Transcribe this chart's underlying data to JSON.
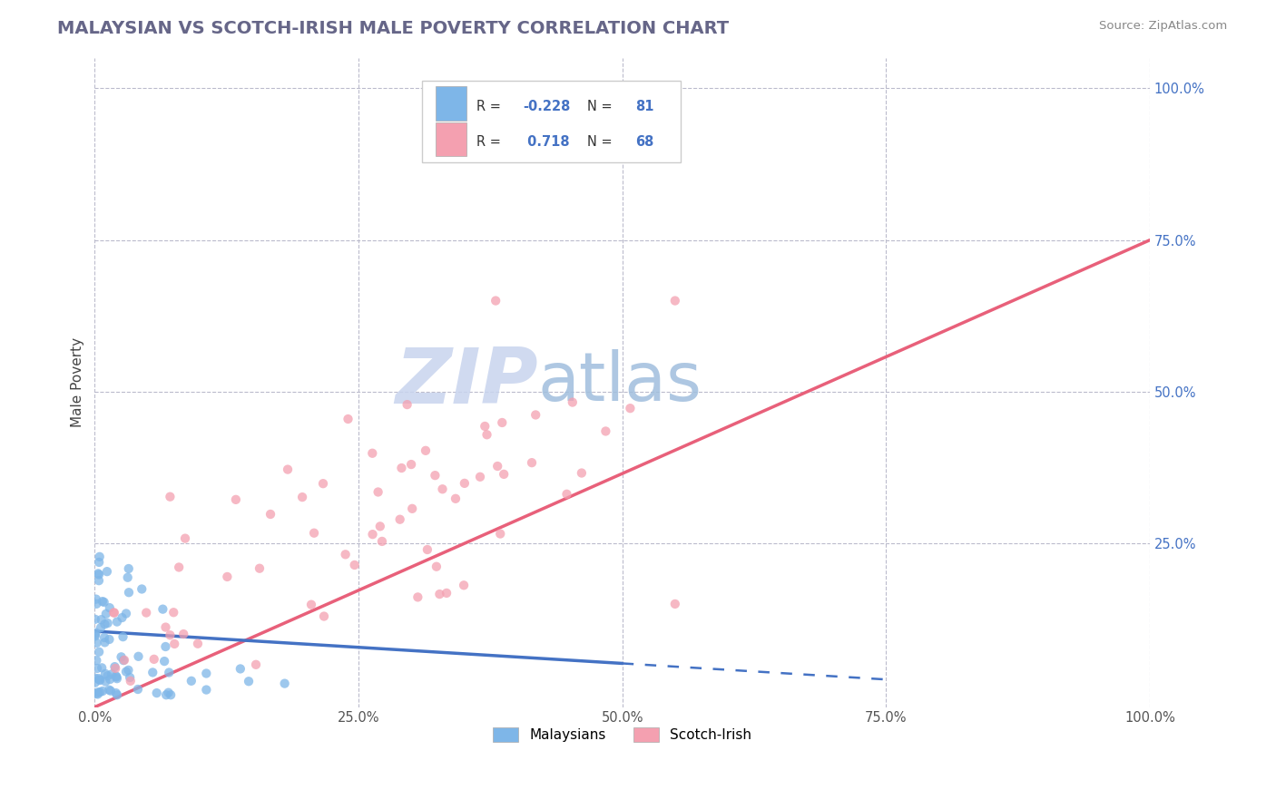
{
  "title": "MALAYSIAN VS SCOTCH-IRISH MALE POVERTY CORRELATION CHART",
  "source": "Source: ZipAtlas.com",
  "ylabel": "Male Poverty",
  "xlim": [
    0,
    1.0
  ],
  "ylim": [
    -0.02,
    1.05
  ],
  "xtick_labels": [
    "0.0%",
    "25.0%",
    "50.0%",
    "75.0%",
    "100.0%"
  ],
  "xtick_vals": [
    0.0,
    0.25,
    0.5,
    0.75,
    1.0
  ],
  "ytick_labels": [
    "25.0%",
    "50.0%",
    "75.0%",
    "100.0%"
  ],
  "ytick_vals": [
    0.25,
    0.5,
    0.75,
    1.0
  ],
  "malaysian_color": "#7EB6E8",
  "scotchirish_color": "#F4A0B0",
  "trend_malaysian_color": "#4472C4",
  "trend_scotchirish_color": "#E8607A",
  "r_malaysian": -0.228,
  "n_malaysian": 81,
  "r_scotchirish": 0.718,
  "n_scotchirish": 68,
  "background_color": "#FFFFFF",
  "watermark_zip": "ZIP",
  "watermark_atlas": "atlas",
  "watermark_zip_color": "#C8D4EE",
  "watermark_atlas_color": "#A0BEDD",
  "legend_label_1": "Malaysians",
  "legend_label_2": "Scotch-Irish",
  "title_color": "#666688",
  "grid_color": "#BBBBCC",
  "rn_label_color": "#333333",
  "rn_value_color": "#4472C4",
  "source_color": "#888888",
  "ytick_color": "#4472C4",
  "xtick_color": "#555555"
}
